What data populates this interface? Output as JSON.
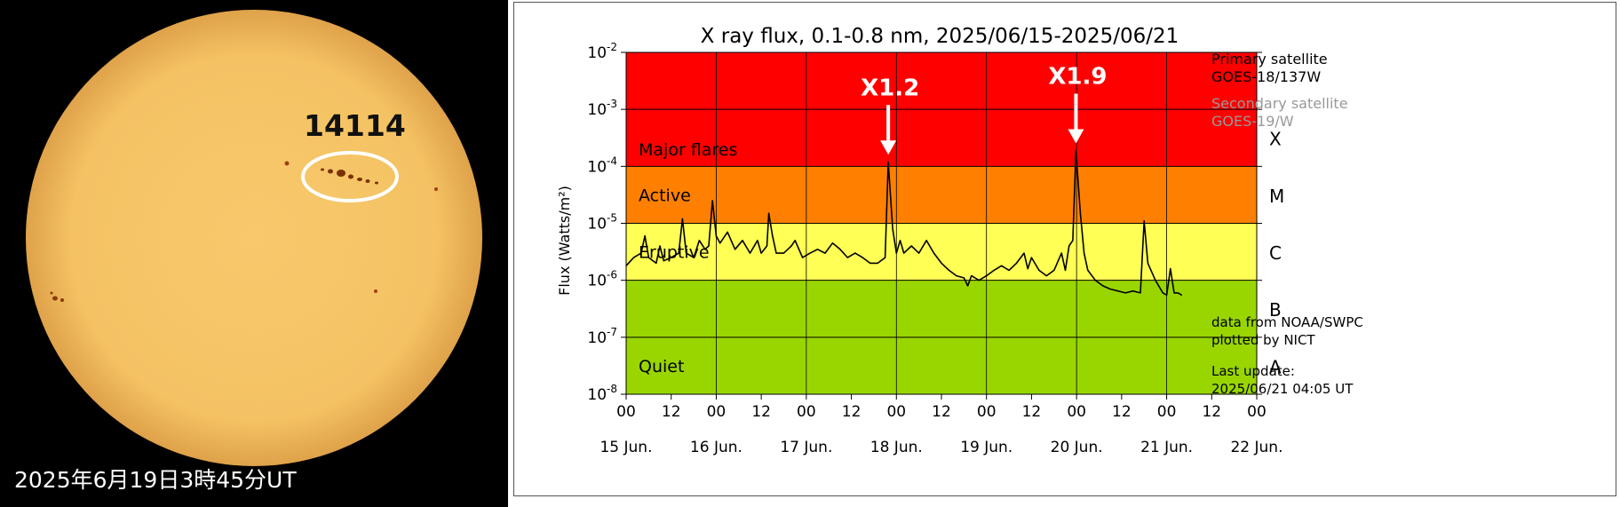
{
  "solar_image": {
    "caption": "2025年6月19日3時45分UT",
    "region_label": "14114"
  },
  "chart_data": {
    "type": "line",
    "title": "X ray flux, 0.1-0.8 nm, 2025/06/15-2025/06/21",
    "ylabel": "Flux (Watts/m²)",
    "y_scale": "log",
    "ylim": [
      1e-08,
      0.01
    ],
    "y_ticks": [
      {
        "value": 1e-08,
        "base": "10",
        "exp": "-8"
      },
      {
        "value": 1e-07,
        "base": "10",
        "exp": "-7"
      },
      {
        "value": 1e-06,
        "base": "10",
        "exp": "-6"
      },
      {
        "value": 1e-05,
        "base": "10",
        "exp": "-5"
      },
      {
        "value": 0.0001,
        "base": "10",
        "exp": "-4"
      },
      {
        "value": 0.001,
        "base": "10",
        "exp": "-3"
      },
      {
        "value": 0.01,
        "base": "10",
        "exp": "-2"
      }
    ],
    "xlim": [
      "2025-06-15 00:00",
      "2025-06-22 00:00"
    ],
    "x_hour_ticks": [
      "00",
      "12",
      "00",
      "12",
      "00",
      "12",
      "00",
      "12",
      "00",
      "12",
      "00",
      "12",
      "00",
      "12",
      "00"
    ],
    "x_day_ticks": [
      "15 Jun.",
      "16 Jun.",
      "17 Jun.",
      "18 Jun.",
      "19 Jun.",
      "20 Jun.",
      "21 Jun.",
      "22 Jun."
    ],
    "bands": [
      {
        "name": "Major flares",
        "from": 0.0001,
        "to": 0.01,
        "color": "#ff0000"
      },
      {
        "name": "Active",
        "from": 1e-05,
        "to": 0.0001,
        "color": "#ff8000"
      },
      {
        "name": "Eruptive",
        "from": 1e-06,
        "to": 1e-05,
        "color": "#ffff55"
      },
      {
        "name": "Quiet",
        "from": 1e-08,
        "to": 1e-06,
        "color": "#99d600"
      }
    ],
    "class_labels": [
      {
        "label": "X",
        "value": 0.0003
      },
      {
        "label": "M",
        "value": 3e-05
      },
      {
        "label": "C",
        "value": 3e-06
      },
      {
        "label": "B",
        "value": 3e-07
      },
      {
        "label": "A",
        "value": 3e-08
      }
    ],
    "annotations": [
      {
        "text": "X1.2",
        "x": "2025-06-17 21:50",
        "y": 0.00012
      },
      {
        "text": "X1.9",
        "x": "2025-06-19 23:50",
        "y": 0.00019
      }
    ],
    "series": [
      {
        "color": "#000000",
        "points": [
          [
            "2025-06-15 00:00",
            1.8e-06
          ],
          [
            "2025-06-15 02:00",
            2.5e-06
          ],
          [
            "2025-06-15 04:00",
            3e-06
          ],
          [
            "2025-06-15 05:00",
            6e-06
          ],
          [
            "2025-06-15 06:00",
            2.5e-06
          ],
          [
            "2025-06-15 08:00",
            2e-06
          ],
          [
            "2025-06-15 09:00",
            4e-06
          ],
          [
            "2025-06-15 10:00",
            2.2e-06
          ],
          [
            "2025-06-15 12:00",
            2.5e-06
          ],
          [
            "2025-06-15 14:00",
            3e-06
          ],
          [
            "2025-06-15 15:00",
            1.2e-05
          ],
          [
            "2025-06-15 16:00",
            3e-06
          ],
          [
            "2025-06-15 18:00",
            2.5e-06
          ],
          [
            "2025-06-15 19:30",
            5e-06
          ],
          [
            "2025-06-15 21:00",
            3.5e-06
          ],
          [
            "2025-06-15 22:00",
            4e-06
          ],
          [
            "2025-06-15 23:00",
            2.5e-05
          ],
          [
            "2025-06-16 00:00",
            6e-06
          ],
          [
            "2025-06-16 01:00",
            4.5e-06
          ],
          [
            "2025-06-16 03:00",
            7e-06
          ],
          [
            "2025-06-16 05:00",
            3.5e-06
          ],
          [
            "2025-06-16 07:00",
            5e-06
          ],
          [
            "2025-06-16 09:00",
            3e-06
          ],
          [
            "2025-06-16 11:00",
            5e-06
          ],
          [
            "2025-06-16 12:00",
            3e-06
          ],
          [
            "2025-06-16 13:30",
            4e-06
          ],
          [
            "2025-06-16 14:00",
            1.5e-05
          ],
          [
            "2025-06-16 15:00",
            6e-06
          ],
          [
            "2025-06-16 16:00",
            3e-06
          ],
          [
            "2025-06-16 18:00",
            3e-06
          ],
          [
            "2025-06-16 20:00",
            4e-06
          ],
          [
            "2025-06-16 21:00",
            5e-06
          ],
          [
            "2025-06-16 23:00",
            2.5e-06
          ],
          [
            "2025-06-17 01:00",
            3e-06
          ],
          [
            "2025-06-17 03:00",
            3.5e-06
          ],
          [
            "2025-06-17 05:00",
            3e-06
          ],
          [
            "2025-06-17 07:00",
            4.5e-06
          ],
          [
            "2025-06-17 09:00",
            3.5e-06
          ],
          [
            "2025-06-17 11:00",
            2.5e-06
          ],
          [
            "2025-06-17 13:00",
            3e-06
          ],
          [
            "2025-06-17 15:00",
            2.5e-06
          ],
          [
            "2025-06-17 17:00",
            2e-06
          ],
          [
            "2025-06-17 19:00",
            2e-06
          ],
          [
            "2025-06-17 21:00",
            2.5e-06
          ],
          [
            "2025-06-17 21:50",
            0.00012
          ],
          [
            "2025-06-17 23:00",
            8e-06
          ],
          [
            "2025-06-18 00:00",
            3e-06
          ],
          [
            "2025-06-18 01:00",
            5e-06
          ],
          [
            "2025-06-18 02:00",
            3e-06
          ],
          [
            "2025-06-18 04:00",
            4e-06
          ],
          [
            "2025-06-18 06:00",
            3e-06
          ],
          [
            "2025-06-18 08:00",
            5e-06
          ],
          [
            "2025-06-18 10:00",
            3e-06
          ],
          [
            "2025-06-18 12:00",
            2e-06
          ],
          [
            "2025-06-18 14:00",
            1.5e-06
          ],
          [
            "2025-06-18 16:00",
            1.2e-06
          ],
          [
            "2025-06-18 18:00",
            1.1e-06
          ],
          [
            "2025-06-18 19:00",
            8e-07
          ],
          [
            "2025-06-18 20:00",
            1.2e-06
          ],
          [
            "2025-06-18 22:00",
            1e-06
          ],
          [
            "2025-06-19 00:00",
            1.2e-06
          ],
          [
            "2025-06-19 02:00",
            1.5e-06
          ],
          [
            "2025-06-19 04:00",
            1.8e-06
          ],
          [
            "2025-06-19 06:00",
            1.5e-06
          ],
          [
            "2025-06-19 08:00",
            2e-06
          ],
          [
            "2025-06-19 10:00",
            3e-06
          ],
          [
            "2025-06-19 11:00",
            1.6e-06
          ],
          [
            "2025-06-19 12:00",
            2.5e-06
          ],
          [
            "2025-06-19 14:00",
            1.5e-06
          ],
          [
            "2025-06-19 16:00",
            1.2e-06
          ],
          [
            "2025-06-19 18:00",
            1.5e-06
          ],
          [
            "2025-06-19 20:00",
            3e-06
          ],
          [
            "2025-06-19 21:00",
            1.5e-06
          ],
          [
            "2025-06-19 22:00",
            4e-06
          ],
          [
            "2025-06-19 23:00",
            5e-06
          ],
          [
            "2025-06-19 23:50",
            0.00019
          ],
          [
            "2025-06-20 01:00",
            1.5e-05
          ],
          [
            "2025-06-20 02:00",
            3e-06
          ],
          [
            "2025-06-20 03:00",
            1.5e-06
          ],
          [
            "2025-06-20 05:00",
            1e-06
          ],
          [
            "2025-06-20 07:00",
            8e-07
          ],
          [
            "2025-06-20 09:00",
            7e-07
          ],
          [
            "2025-06-20 11:00",
            6.5e-07
          ],
          [
            "2025-06-20 13:00",
            6e-07
          ],
          [
            "2025-06-20 15:00",
            6.5e-07
          ],
          [
            "2025-06-20 17:00",
            6e-07
          ],
          [
            "2025-06-20 18:00",
            1.1e-05
          ],
          [
            "2025-06-20 19:00",
            2e-06
          ],
          [
            "2025-06-20 21:00",
            1e-06
          ],
          [
            "2025-06-20 23:00",
            6e-07
          ],
          [
            "2025-06-21 00:00",
            5.5e-07
          ],
          [
            "2025-06-21 01:00",
            1.6e-06
          ],
          [
            "2025-06-21 02:00",
            6e-07
          ],
          [
            "2025-06-21 03:00",
            6e-07
          ],
          [
            "2025-06-21 04:00",
            5.5e-07
          ]
        ]
      }
    ]
  },
  "satellites": {
    "primary_label": "Primary satellite",
    "primary_value": "GOES-18/137W",
    "primary_color": "#000000",
    "secondary_label": "Secondary satellite",
    "secondary_value": "GOES-19/W",
    "secondary_color": "#999999"
  },
  "credits": {
    "source": "data from NOAA/SWPC",
    "plotted": "plotted by NICT"
  },
  "update": {
    "label": "Last update:",
    "value": "2025/06/21 04:05 UT"
  }
}
